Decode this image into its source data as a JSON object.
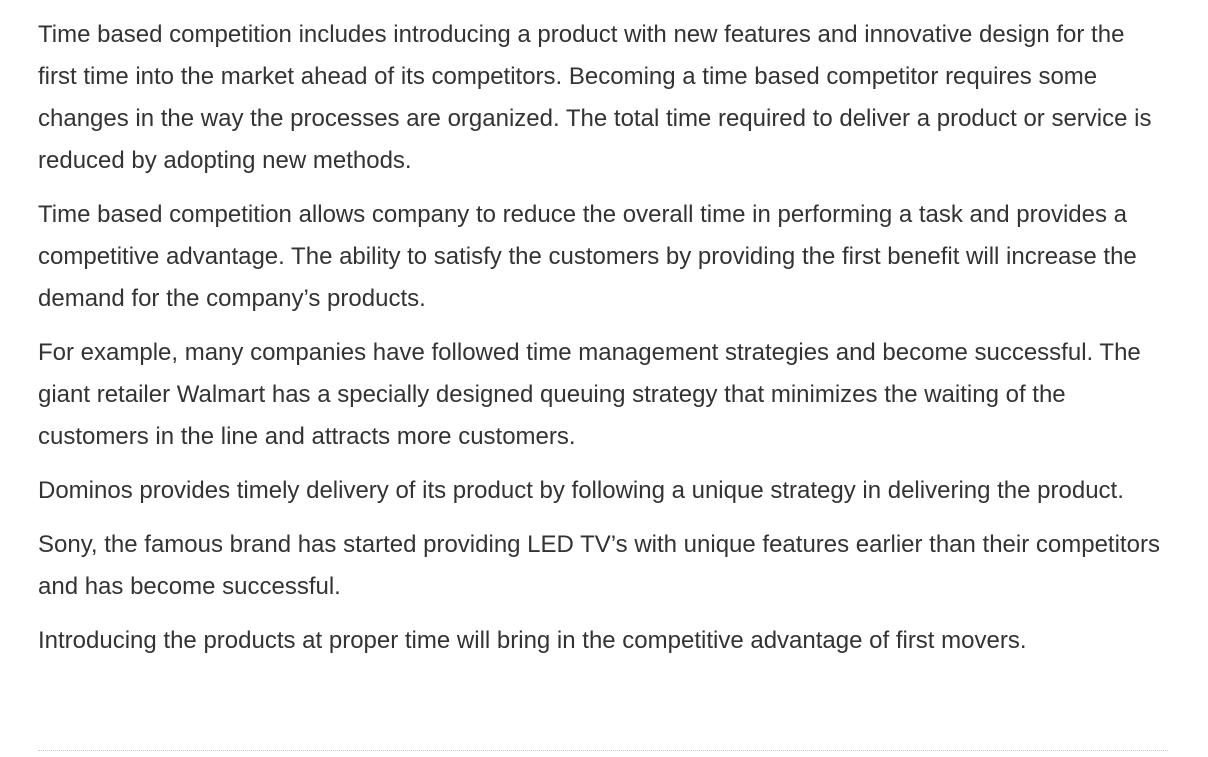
{
  "article": {
    "paragraphs": [
      "Time based competition includes introducing a product with new features and innovative design for the first time into the market ahead of its competitors. Becoming a time based competitor requires some changes in the way the processes are organized. The total time required to deliver a product or service is reduced by adopting new methods.",
      "Time based competition allows company to reduce the overall time in performing a task and provides a competitive advantage. The ability to satisfy the customers by providing the first benefit will increase the demand for the company’s products.",
      "For example, many companies have followed time management strategies and become successful. The giant retailer Walmart has a specially designed queuing strategy that minimizes the waiting of the customers in the line and attracts more customers.",
      "Dominos provides timely delivery of its product by following a unique strategy in delivering the product.",
      "Sony, the famous brand has started providing LED TV’s with unique features earlier than their competitors and has become successful.",
      "Introducing the products at proper time will bring in the competitive advantage of first movers."
    ]
  }
}
